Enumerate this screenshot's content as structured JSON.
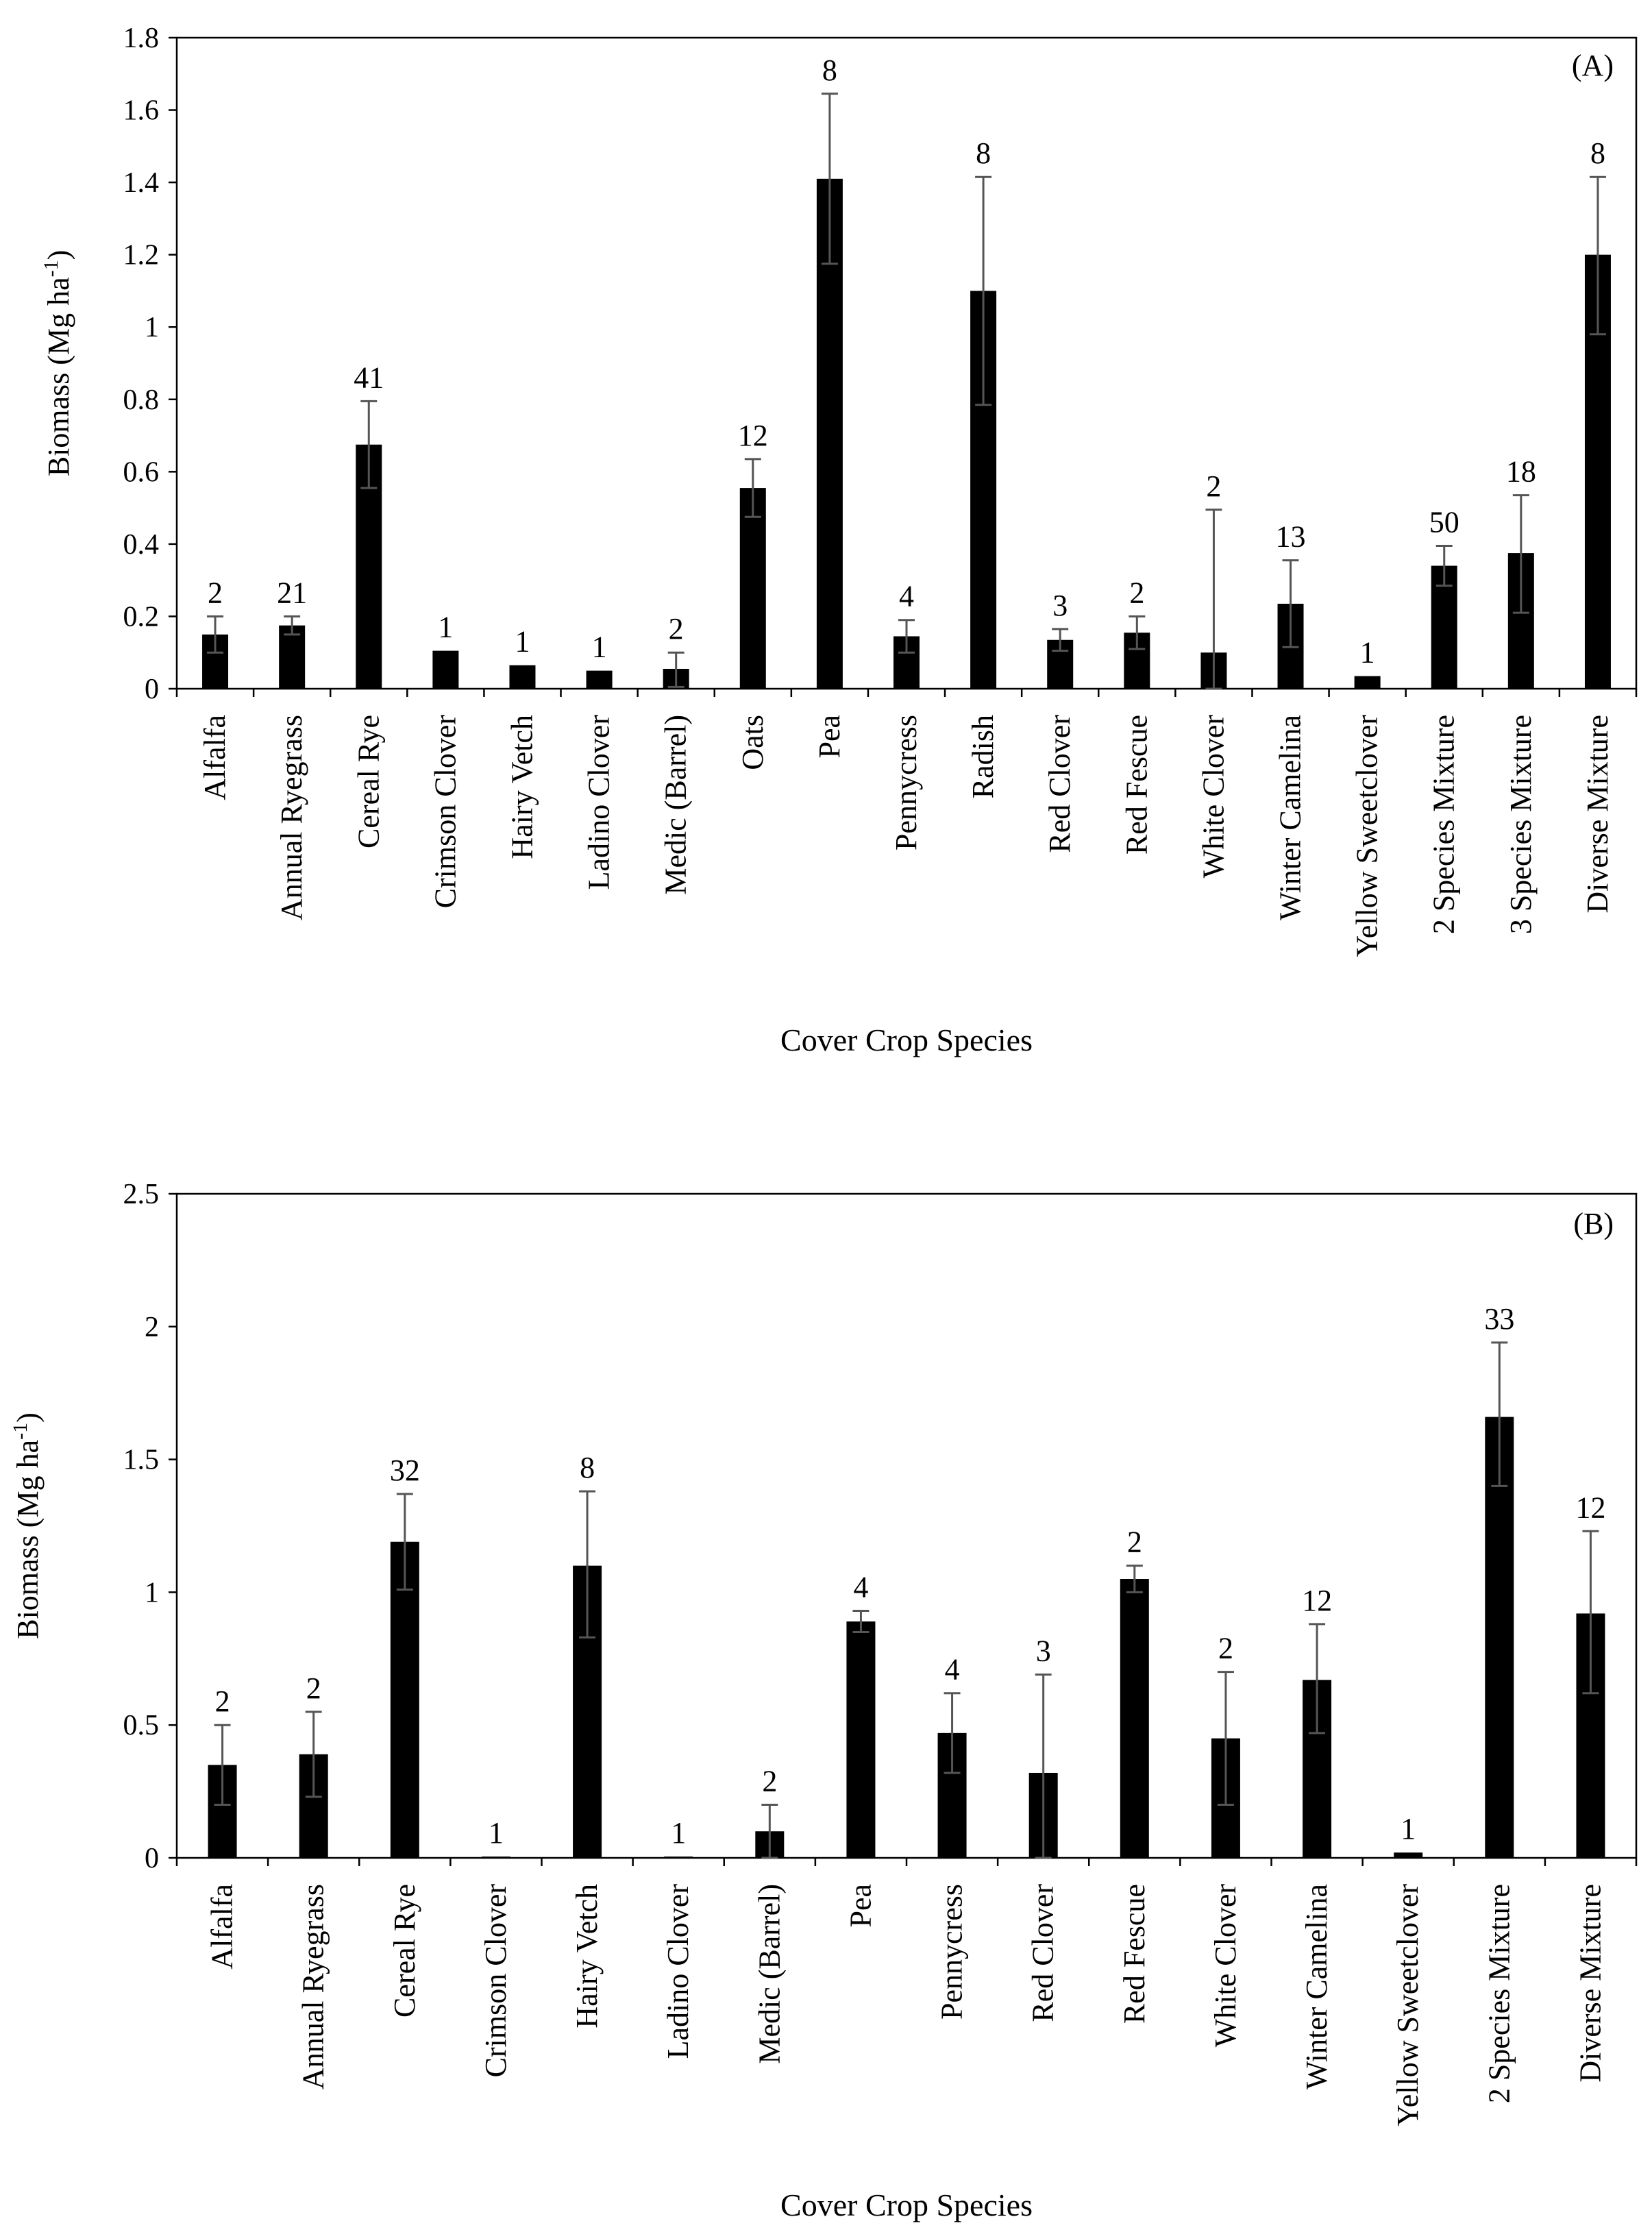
{
  "chart_data": [
    {
      "type": "bar",
      "panel_label": "(A)",
      "xlabel": "Cover Crop Species",
      "ylabel": "Biomass (Mg ha",
      "ylabel_sup": "-1",
      "ylabel_close": ")",
      "ylim": [
        0,
        1.8
      ],
      "yticks": [
        0,
        0.2,
        0.4,
        0.6,
        0.8,
        1,
        1.2,
        1.4,
        1.6,
        1.8
      ],
      "ytick_labels": [
        "0",
        "0.2",
        "0.4",
        "0.6",
        "0.8",
        "1",
        "1.2",
        "1.4",
        "1.6",
        "1.8"
      ],
      "categories": [
        "Alfalfa",
        "Annual Ryegrass",
        "Cereal Rye",
        "Crimson Clover",
        "Hairy Vetch",
        "Ladino Clover",
        "Medic (Barrel)",
        "Oats",
        "Pea",
        "Pennycress",
        "Radish",
        "Red Clover",
        "Red Fescue",
        "White Clover",
        "Winter Camelina",
        "Yellow Sweetclover",
        "2 Species Mixture",
        "3 Species Mixture",
        "Diverse Mixture"
      ],
      "values": [
        0.15,
        0.175,
        0.675,
        0.105,
        0.065,
        0.05,
        0.055,
        0.555,
        1.41,
        0.145,
        1.1,
        0.135,
        0.155,
        0.1,
        0.235,
        0.035,
        0.34,
        0.375,
        1.2
      ],
      "error_upper": [
        0.2,
        0.2,
        0.795,
        null,
        null,
        null,
        0.1,
        0.635,
        1.645,
        0.19,
        1.415,
        0.165,
        0.2,
        0.495,
        0.355,
        null,
        0.395,
        0.535,
        1.415
      ],
      "error_lower": [
        0.1,
        0.15,
        0.555,
        null,
        null,
        null,
        0.005,
        0.475,
        1.175,
        0.1,
        0.785,
        0.105,
        0.11,
        0,
        0.115,
        null,
        0.285,
        0.21,
        0.98
      ],
      "data_labels": [
        "2",
        "21",
        "41",
        "1",
        "1",
        "1",
        "2",
        "12",
        "8",
        "4",
        "8",
        "3",
        "2",
        "2",
        "13",
        "1",
        "50",
        "18",
        "8"
      ]
    },
    {
      "type": "bar",
      "panel_label": "(B)",
      "xlabel": "Cover Crop Species",
      "ylabel": "Biomass (Mg ha",
      "ylabel_sup": "-1",
      "ylabel_close": ")",
      "ylim": [
        0,
        2.5
      ],
      "yticks": [
        0,
        0.5,
        1,
        1.5,
        2,
        2.5
      ],
      "ytick_labels": [
        "0",
        "0.5",
        "1",
        "1.5",
        "2",
        "2.5"
      ],
      "categories": [
        "Alfalfa",
        "Annual Ryegrass",
        "Cereal Rye",
        "Crimson Clover",
        "Hairy Vetch",
        "Ladino Clover",
        "Medic (Barrel)",
        "Pea",
        "Pennycress",
        "Red Clover",
        "Red Fescue",
        "White Clover",
        "Winter Camelina",
        "Yellow Sweetclover",
        "2 Species Mixture",
        "Diverse Mixture"
      ],
      "values": [
        0.35,
        0.39,
        1.19,
        0.005,
        1.1,
        0.005,
        0.1,
        0.89,
        0.47,
        0.32,
        1.05,
        0.45,
        0.67,
        0.02,
        1.66,
        0.92
      ],
      "error_upper": [
        0.5,
        0.55,
        1.37,
        null,
        1.38,
        null,
        0.2,
        0.93,
        0.62,
        0.69,
        1.1,
        0.7,
        0.88,
        null,
        1.94,
        1.23
      ],
      "error_lower": [
        0.2,
        0.23,
        1.01,
        null,
        0.83,
        null,
        0,
        0.85,
        0.32,
        0,
        1.0,
        0.2,
        0.47,
        null,
        1.4,
        0.62
      ],
      "data_labels": [
        "2",
        "2",
        "32",
        "1",
        "8",
        "1",
        "2",
        "4",
        "4",
        "3",
        "2",
        "2",
        "12",
        "1",
        "33",
        "12"
      ]
    }
  ]
}
